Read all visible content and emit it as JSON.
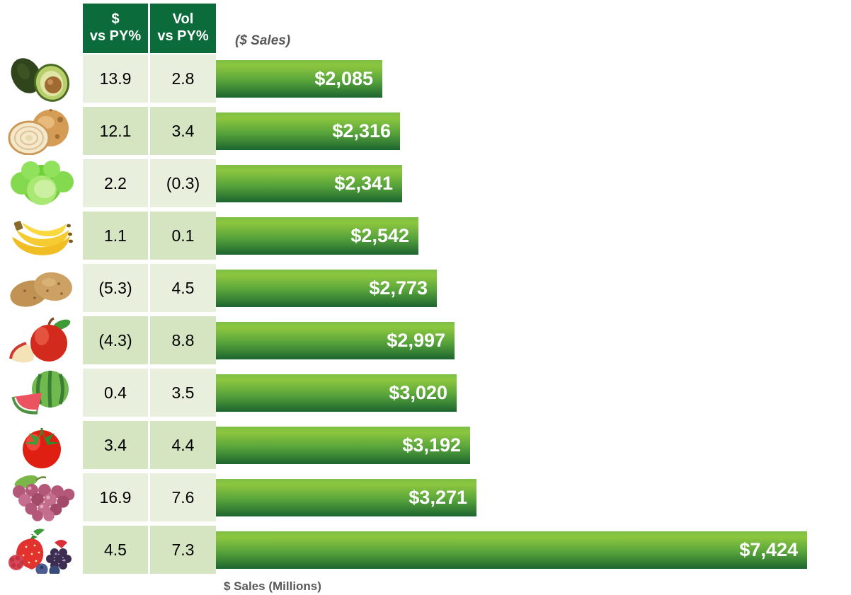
{
  "header": {
    "col1_line1": "$",
    "col1_line2": "vs PY%",
    "col2_line1": "Vol",
    "col2_line2": "vs PY%",
    "sales_note": "($ Sales)"
  },
  "footer": {
    "axis_label": "$ Sales (Millions)"
  },
  "colors": {
    "header_green": "#0c6b3a",
    "row_light": "#e9efdd",
    "row_dark": "#d6e5c1",
    "bar_gradient_top": "#8cc63f",
    "bar_gradient_bottom": "#1c6530",
    "note_gray": "#595959",
    "bar_label": "#ffffff"
  },
  "rows": [
    {
      "item": "avocado",
      "icon": "avocado-icon",
      "dollar_vs_py": "13.9",
      "vol_vs_py": "2.8",
      "sales_label": "$2,085",
      "sales_value": 2085
    },
    {
      "item": "onion",
      "icon": "onion-icon",
      "dollar_vs_py": "12.1",
      "vol_vs_py": "3.4",
      "sales_label": "$2,316",
      "sales_value": 2316
    },
    {
      "item": "lettuce",
      "icon": "lettuce-icon",
      "dollar_vs_py": "2.2",
      "vol_vs_py": "(0.3)",
      "sales_label": "$2,341",
      "sales_value": 2341
    },
    {
      "item": "banana",
      "icon": "banana-icon",
      "dollar_vs_py": "1.1",
      "vol_vs_py": "0.1",
      "sales_label": "$2,542",
      "sales_value": 2542
    },
    {
      "item": "potato",
      "icon": "potato-icon",
      "dollar_vs_py": "(5.3)",
      "vol_vs_py": "4.5",
      "sales_label": "$2,773",
      "sales_value": 2773
    },
    {
      "item": "apple",
      "icon": "apple-icon",
      "dollar_vs_py": "(4.3)",
      "vol_vs_py": "8.8",
      "sales_label": "$2,997",
      "sales_value": 2997
    },
    {
      "item": "watermelon",
      "icon": "watermelon-icon",
      "dollar_vs_py": "0.4",
      "vol_vs_py": "3.5",
      "sales_label": "$3,020",
      "sales_value": 3020
    },
    {
      "item": "tomato",
      "icon": "tomato-icon",
      "dollar_vs_py": "3.4",
      "vol_vs_py": "4.4",
      "sales_label": "$3,192",
      "sales_value": 3192
    },
    {
      "item": "grapes",
      "icon": "grapes-icon",
      "dollar_vs_py": "16.9",
      "vol_vs_py": "7.6",
      "sales_label": "$3,271",
      "sales_value": 3271
    },
    {
      "item": "berries",
      "icon": "berries-icon",
      "dollar_vs_py": "4.5",
      "vol_vs_py": "7.3",
      "sales_label": "$7,424",
      "sales_value": 7424
    }
  ],
  "chart_data": {
    "type": "bar",
    "orientation": "horizontal",
    "title": "($ Sales)",
    "xlabel": "$ Sales (Millions)",
    "categories": [
      "Avocado",
      "Onion",
      "Lettuce",
      "Banana",
      "Potato",
      "Apple",
      "Watermelon",
      "Tomato",
      "Grapes",
      "Berries"
    ],
    "series": [
      {
        "name": "$ Sales (Millions)",
        "values": [
          2085,
          2316,
          2341,
          2542,
          2773,
          2997,
          3020,
          3192,
          3271,
          7424
        ]
      },
      {
        "name": "$ vs PY%",
        "values": [
          13.9,
          12.1,
          2.2,
          1.1,
          -5.3,
          -4.3,
          0.4,
          3.4,
          16.9,
          4.5
        ]
      },
      {
        "name": "Vol vs PY%",
        "values": [
          2.8,
          3.4,
          -0.3,
          0.1,
          4.5,
          8.8,
          3.5,
          4.4,
          7.6,
          7.3
        ]
      }
    ],
    "data_labels": [
      "$2,085",
      "$2,316",
      "$2,341",
      "$2,542",
      "$2,773",
      "$2,997",
      "$3,020",
      "$3,192",
      "$3,271",
      "$7,424"
    ],
    "negative_format": "parentheses",
    "max_value": 7424,
    "xlim": [
      0,
      8000
    ],
    "grid": false,
    "legend": false
  }
}
